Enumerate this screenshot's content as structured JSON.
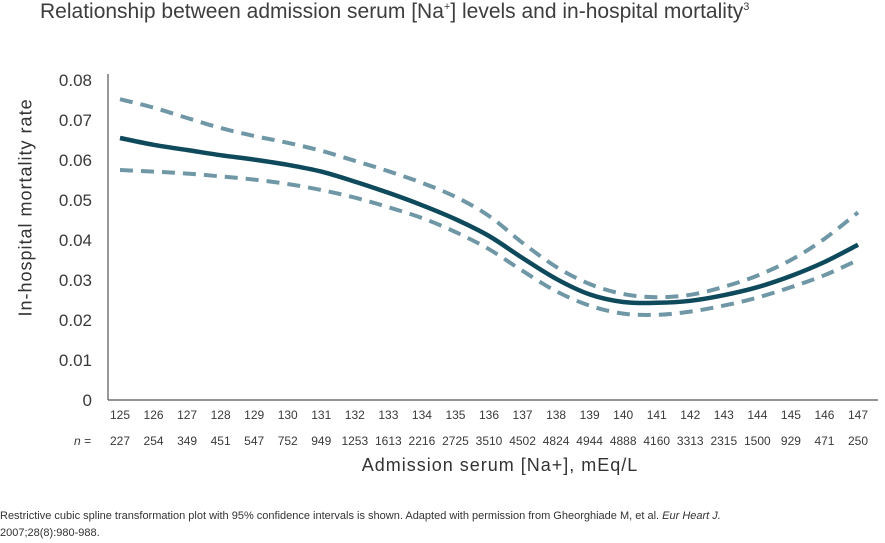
{
  "title": "Relationship between admission serum [Na",
  "title_sup": "+",
  "title_end": "] levels and in-hospital mortality",
  "title_ref": "3",
  "caption": {
    "text1": "Restrictive cubic spline transformation plot with 95% confidence intervals is shown. Adapted with permission from Gheorghiade M, et al. ",
    "journal": "Eur Heart J.",
    "text2": "2007;28(8):980-988."
  },
  "n_label": "n =",
  "colors": {
    "main": "#0e4a5c",
    "ci": "#6f97a6",
    "axis": "#555555"
  },
  "chart_data": {
    "type": "line",
    "title": "Relationship between admission serum [Na+] levels and in-hospital mortality",
    "xlabel": "Admission serum [Na+], mEq/L",
    "ylabel": "In-hospital mortality rate",
    "ylim": [
      0,
      0.08
    ],
    "yticks": [
      "0",
      "0.01",
      "0.02",
      "0.03",
      "0.04",
      "0.05",
      "0.06",
      "0.07",
      "0.08"
    ],
    "x": [
      125,
      126,
      127,
      128,
      129,
      130,
      131,
      132,
      133,
      134,
      135,
      136,
      137,
      138,
      139,
      140,
      141,
      142,
      143,
      144,
      145,
      146,
      147
    ],
    "n": [
      227,
      254,
      349,
      451,
      547,
      752,
      949,
      1253,
      1613,
      2216,
      2725,
      3510,
      4502,
      4824,
      4944,
      4888,
      4160,
      3313,
      2315,
      1500,
      929,
      471,
      250
    ],
    "grid": false,
    "series": [
      {
        "style": "solid",
        "values": [
          0.0655,
          0.0638,
          0.0625,
          0.0612,
          0.0601,
          0.0588,
          0.0571,
          0.0546,
          0.0518,
          0.0487,
          0.0452,
          0.041,
          0.0355,
          0.0303,
          0.0264,
          0.0245,
          0.0243,
          0.0248,
          0.0262,
          0.0282,
          0.031,
          0.0345,
          0.0388
        ]
      },
      {
        "style": "dashed",
        "values": [
          0.0752,
          0.0731,
          0.0705,
          0.068,
          0.066,
          0.0643,
          0.0623,
          0.0598,
          0.0572,
          0.0543,
          0.0508,
          0.046,
          0.0393,
          0.0333,
          0.029,
          0.0265,
          0.0257,
          0.0263,
          0.0283,
          0.0311,
          0.035,
          0.0403,
          0.0469
        ]
      },
      {
        "style": "dashed",
        "values": [
          0.0575,
          0.0571,
          0.0566,
          0.0559,
          0.0551,
          0.054,
          0.0525,
          0.0506,
          0.0482,
          0.0455,
          0.042,
          0.0377,
          0.0323,
          0.0272,
          0.0236,
          0.0216,
          0.0213,
          0.0221,
          0.0236,
          0.0256,
          0.0282,
          0.0312,
          0.035
        ]
      }
    ]
  }
}
